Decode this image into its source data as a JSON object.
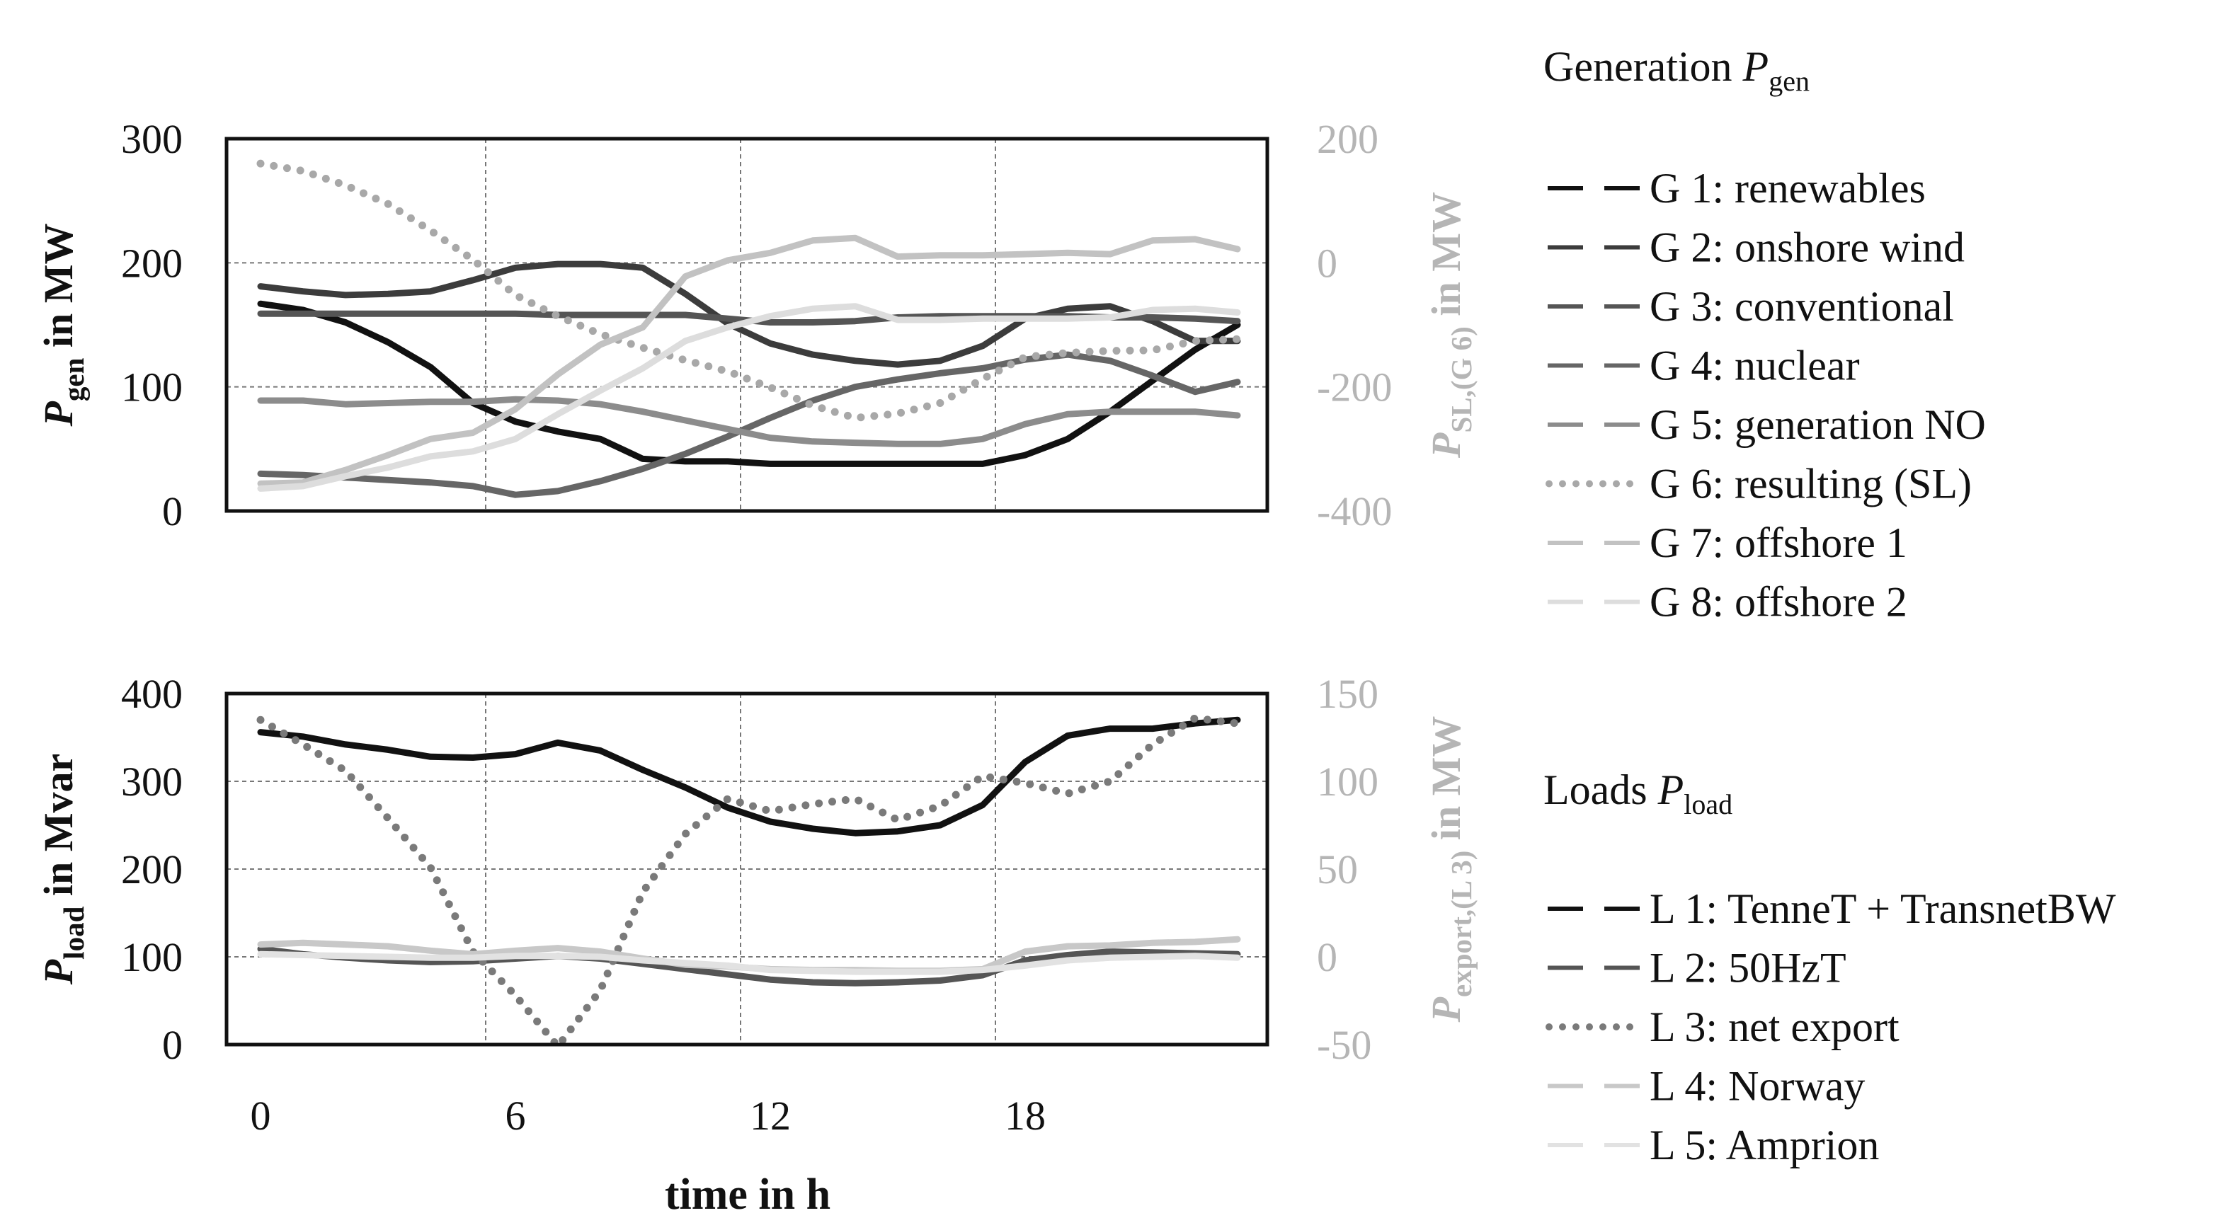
{
  "chart_data": [
    {
      "type": "line",
      "panel": "generation",
      "xlabel": "",
      "ylabel_main": "P",
      "ylabel_sub": "gen",
      "ylabel_rest": " in MW",
      "ylim": [
        0,
        300
      ],
      "yticks": [
        "0",
        "100",
        "200",
        "300"
      ],
      "y2label_main": "P",
      "y2label_sub": "SL,(G 6)",
      "y2label_rest": " in MW",
      "y2lim": [
        -400,
        200
      ],
      "y2ticks": [
        "-400",
        "-200",
        "0",
        "200"
      ],
      "x": [
        0,
        1,
        2,
        3,
        4,
        5,
        6,
        7,
        8,
        9,
        10,
        11,
        12,
        13,
        14,
        15,
        16,
        17,
        18,
        19,
        20,
        21,
        22,
        23
      ],
      "series": [
        {
          "name": "G 1: renewables",
          "axis": "left",
          "style": "solid",
          "color": "#111111",
          "values": [
            167,
            162,
            152,
            136,
            116,
            87,
            72,
            64,
            58,
            42,
            40,
            40,
            38,
            38,
            38,
            38,
            38,
            38,
            45,
            58,
            80,
            105,
            130,
            150
          ]
        },
        {
          "name": "G 2: onshore wind",
          "axis": "left",
          "style": "solid",
          "color": "#3c3c3c",
          "values": [
            181,
            177,
            174,
            175,
            177,
            186,
            196,
            199,
            199,
            196,
            175,
            151,
            135,
            126,
            121,
            118,
            121,
            133,
            155,
            163,
            165,
            153,
            137,
            137
          ]
        },
        {
          "name": "G 3: conventional",
          "axis": "left",
          "style": "solid",
          "color": "#555555",
          "values": [
            159,
            159,
            159,
            159,
            159,
            159,
            159,
            158,
            158,
            158,
            158,
            155,
            152,
            152,
            153,
            156,
            157,
            157,
            157,
            157,
            156,
            156,
            155,
            153
          ]
        },
        {
          "name": "G 4: nuclear",
          "axis": "left",
          "style": "solid",
          "color": "#666666",
          "values": [
            30,
            29,
            27,
            25,
            23,
            20,
            13,
            16,
            24,
            34,
            46,
            60,
            75,
            89,
            100,
            106,
            111,
            115,
            122,
            126,
            121,
            109,
            96,
            104
          ]
        },
        {
          "name": "G 5: generation NO",
          "axis": "left",
          "style": "solid",
          "color": "#8c8c8c",
          "values": [
            89,
            89,
            86,
            87,
            88,
            88,
            90,
            89,
            86,
            80,
            73,
            66,
            59,
            56,
            55,
            54,
            54,
            58,
            70,
            78,
            80,
            80,
            80,
            77
          ]
        },
        {
          "name": "G 6: resulting (SL)",
          "axis": "right",
          "style": "dotted",
          "color": "#a8a8a8",
          "values": [
            160,
            148,
            125,
            95,
            52,
            5,
            -52,
            -86,
            -115,
            -137,
            -157,
            -175,
            -201,
            -230,
            -250,
            -243,
            -226,
            -187,
            -152,
            -145,
            -142,
            -141,
            -126,
            -123
          ]
        },
        {
          "name": "G 7: offshore 1",
          "axis": "left",
          "style": "solid",
          "color": "#c2c2c2",
          "values": [
            22,
            23,
            33,
            45,
            58,
            63,
            82,
            110,
            134,
            148,
            189,
            202,
            208,
            218,
            220,
            205,
            206,
            206,
            207,
            208,
            207,
            218,
            219,
            211
          ]
        },
        {
          "name": "G 8: offshore 2",
          "axis": "left",
          "style": "solid",
          "color": "#dddddd",
          "values": [
            18,
            20,
            28,
            35,
            44,
            48,
            58,
            78,
            97,
            115,
            137,
            148,
            157,
            163,
            165,
            154,
            154,
            155,
            155,
            155,
            156,
            162,
            163,
            160
          ]
        }
      ]
    },
    {
      "type": "line",
      "panel": "loads",
      "xlabel": "time in h",
      "xticks": [
        "0",
        "6",
        "12",
        "18"
      ],
      "ylabel_main": "P",
      "ylabel_sub": "load",
      "ylabel_rest": " in Mvar",
      "ylim": [
        0,
        400
      ],
      "yticks": [
        "0",
        "100",
        "200",
        "300",
        "400"
      ],
      "y2label_main": "P",
      "y2label_sub": "export,(L 3)",
      "y2label_rest": " in MW",
      "y2lim": [
        -50,
        150
      ],
      "y2ticks": [
        "-50",
        "0",
        "50",
        "100",
        "150"
      ],
      "x": [
        0,
        1,
        2,
        3,
        4,
        5,
        6,
        7,
        8,
        9,
        10,
        11,
        12,
        13,
        14,
        15,
        16,
        17,
        18,
        19,
        20,
        21,
        22,
        23
      ],
      "series": [
        {
          "name": "L 1: TenneT + TransnetBW",
          "axis": "left",
          "style": "solid",
          "color": "#111111",
          "values": [
            356,
            351,
            342,
            336,
            328,
            327,
            331,
            344,
            335,
            313,
            293,
            270,
            254,
            246,
            241,
            243,
            250,
            273,
            322,
            352,
            360,
            360,
            366,
            370
          ]
        },
        {
          "name": "L 2: 50HzT",
          "axis": "left",
          "style": "solid",
          "color": "#555555",
          "values": [
            109,
            103,
            99,
            96,
            94,
            95,
            98,
            101,
            98,
            92,
            86,
            80,
            74,
            71,
            70,
            71,
            73,
            79,
            96,
            102,
            106,
            105,
            104,
            103
          ]
        },
        {
          "name": "L 3: net export",
          "axis": "right",
          "style": "dotted",
          "color": "#7a7a7a",
          "values": [
            135,
            121,
            106,
            79,
            51,
            3,
            -22,
            -51,
            -19,
            37,
            70,
            90,
            83,
            87,
            90,
            78,
            86,
            103,
            99,
            93,
            100,
            121,
            136,
            133
          ]
        },
        {
          "name": "L 4: Norway",
          "axis": "left",
          "style": "solid",
          "color": "#c8c8c8",
          "values": [
            114,
            116,
            114,
            112,
            107,
            103,
            107,
            110,
            106,
            98,
            91,
            89,
            86,
            85,
            85,
            84,
            84,
            86,
            106,
            112,
            113,
            116,
            117,
            120
          ]
        },
        {
          "name": "L 5: Amprion",
          "axis": "left",
          "style": "solid",
          "color": "#e2e2e2",
          "values": [
            103,
            102,
            101,
            100,
            99,
            99,
            101,
            101,
            100,
            96,
            93,
            90,
            85,
            84,
            83,
            83,
            83,
            85,
            90,
            96,
            99,
            100,
            101,
            99
          ]
        }
      ]
    }
  ],
  "legend": {
    "generation_title": "Generation ",
    "generation_symbol": "P",
    "generation_sub": "gen",
    "load_title": "Loads ",
    "load_symbol": "P",
    "load_sub": "load"
  }
}
